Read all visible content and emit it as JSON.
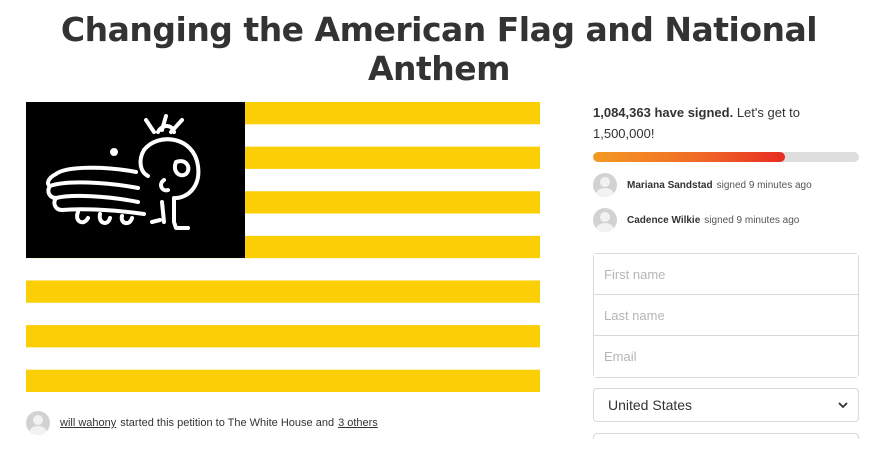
{
  "page": {
    "title": "Changing the American Flag and National Anthem"
  },
  "petition": {
    "starter_name": "will wahony",
    "starter_text": "started this petition to The White House and",
    "others_link": "3 others"
  },
  "signatures": {
    "count": "1,084,363 have signed.",
    "goal_text": "Let's get to 1,500,000!",
    "progress_fraction": 0.72,
    "recent": [
      {
        "name": "Mariana Sandstad",
        "text": "signed 9 minutes ago"
      },
      {
        "name": "Cadence Wilkie",
        "text": "signed 9 minutes ago"
      }
    ]
  },
  "form": {
    "first_name_placeholder": "First name",
    "last_name_placeholder": "Last name",
    "email_placeholder": "Email",
    "country": "United States"
  },
  "colors": {
    "flag_yellow": "#fcce06",
    "flag_black": "#000000",
    "progress_start": "#f39a23",
    "progress_end": "#e62b23"
  },
  "icons": {
    "canton": "cartoon-character-icon",
    "select": "chevron-down-icon"
  }
}
